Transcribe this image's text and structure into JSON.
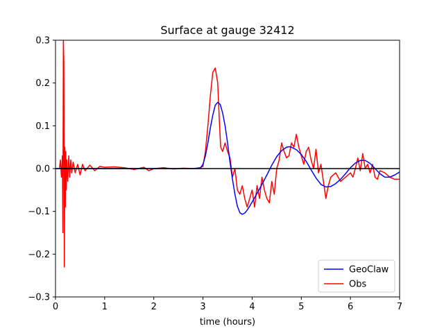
{
  "chart_data": {
    "type": "line",
    "title": "Surface at gauge 32412",
    "xlabel": "time (hours)",
    "ylabel": "",
    "xlim": [
      0,
      7
    ],
    "ylim": [
      -0.3,
      0.3
    ],
    "xticks": [
      "0",
      "1",
      "2",
      "3",
      "4",
      "5",
      "6",
      "7"
    ],
    "yticks": [
      "−0.3",
      "−0.2",
      "−0.1",
      "0.0",
      "0.1",
      "0.2",
      "0.3"
    ],
    "legend_position": "lower-right",
    "zero_line": true,
    "series": [
      {
        "name": "GeoClaw",
        "color": "#0000ff",
        "x": [
          0.0,
          0.5,
          1.0,
          1.5,
          2.0,
          2.5,
          2.8,
          2.95,
          3.0,
          3.05,
          3.1,
          3.15,
          3.2,
          3.25,
          3.3,
          3.35,
          3.4,
          3.45,
          3.5,
          3.55,
          3.6,
          3.65,
          3.7,
          3.75,
          3.8,
          3.85,
          3.9,
          3.95,
          4.0,
          4.1,
          4.2,
          4.3,
          4.4,
          4.5,
          4.6,
          4.7,
          4.75,
          4.8,
          4.9,
          5.0,
          5.1,
          5.2,
          5.3,
          5.4,
          5.5,
          5.6,
          5.7,
          5.8,
          5.9,
          6.0,
          6.1,
          6.2,
          6.3,
          6.4,
          6.5,
          6.6,
          6.7,
          6.8,
          6.9,
          7.0
        ],
        "y": [
          0.0,
          0.0,
          0.0,
          0.0,
          0.0,
          0.0,
          0.0,
          0.002,
          0.01,
          0.03,
          0.06,
          0.095,
          0.125,
          0.148,
          0.155,
          0.15,
          0.13,
          0.1,
          0.06,
          0.015,
          -0.025,
          -0.06,
          -0.088,
          -0.103,
          -0.107,
          -0.104,
          -0.097,
          -0.088,
          -0.078,
          -0.058,
          -0.037,
          -0.015,
          0.008,
          0.028,
          0.042,
          0.05,
          0.051,
          0.05,
          0.044,
          0.033,
          0.017,
          -0.003,
          -0.022,
          -0.037,
          -0.043,
          -0.042,
          -0.035,
          -0.025,
          -0.012,
          0.002,
          0.013,
          0.019,
          0.019,
          0.012,
          0.0,
          -0.012,
          -0.02,
          -0.02,
          -0.015,
          -0.008
        ]
      },
      {
        "name": "Obs",
        "color": "#ff0000",
        "x": [
          0.08,
          0.1,
          0.12,
          0.14,
          0.15,
          0.16,
          0.17,
          0.18,
          0.19,
          0.2,
          0.21,
          0.22,
          0.23,
          0.25,
          0.27,
          0.29,
          0.31,
          0.33,
          0.36,
          0.4,
          0.45,
          0.5,
          0.55,
          0.6,
          0.7,
          0.8,
          0.9,
          1.0,
          1.2,
          1.4,
          1.6,
          1.8,
          1.9,
          2.0,
          2.2,
          2.4,
          2.6,
          2.8,
          2.9,
          3.0,
          3.05,
          3.1,
          3.15,
          3.2,
          3.25,
          3.3,
          3.33,
          3.36,
          3.4,
          3.45,
          3.5,
          3.55,
          3.6,
          3.65,
          3.7,
          3.75,
          3.8,
          3.85,
          3.9,
          3.95,
          4.0,
          4.05,
          4.1,
          4.15,
          4.2,
          4.25,
          4.3,
          4.35,
          4.4,
          4.45,
          4.5,
          4.55,
          4.6,
          4.65,
          4.7,
          4.75,
          4.8,
          4.85,
          4.9,
          4.95,
          5.0,
          5.05,
          5.1,
          5.15,
          5.2,
          5.25,
          5.3,
          5.35,
          5.4,
          5.45,
          5.5,
          5.55,
          5.6,
          5.7,
          5.8,
          5.9,
          6.0,
          6.05,
          6.1,
          6.15,
          6.2,
          6.25,
          6.3,
          6.35,
          6.4,
          6.45,
          6.5,
          6.55,
          6.6,
          6.7,
          6.8,
          6.9,
          7.0
        ],
        "y": [
          0.0,
          0.02,
          -0.02,
          0.03,
          -0.15,
          0.3,
          0.25,
          -0.23,
          0.05,
          -0.09,
          0.04,
          -0.05,
          0.02,
          -0.03,
          0.03,
          -0.02,
          0.02,
          -0.01,
          0.015,
          -0.01,
          0.01,
          -0.015,
          0.01,
          -0.005,
          0.008,
          -0.005,
          0.005,
          0.003,
          0.004,
          0.002,
          -0.002,
          0.003,
          -0.005,
          0.0,
          0.002,
          -0.001,
          0.001,
          0.0,
          0.0,
          0.005,
          0.04,
          0.1,
          0.17,
          0.225,
          0.235,
          0.2,
          0.12,
          0.05,
          0.04,
          0.06,
          0.04,
          0.025,
          -0.02,
          0.0,
          -0.05,
          -0.06,
          -0.04,
          -0.07,
          -0.09,
          -0.07,
          -0.05,
          -0.09,
          -0.04,
          -0.07,
          -0.02,
          -0.05,
          -0.07,
          -0.08,
          -0.03,
          -0.06,
          0.0,
          0.02,
          0.06,
          0.04,
          0.025,
          0.03,
          0.06,
          0.05,
          0.08,
          0.05,
          0.03,
          0.01,
          0.04,
          0.05,
          0.02,
          0.0,
          0.045,
          -0.01,
          0.01,
          -0.03,
          -0.07,
          -0.04,
          -0.02,
          -0.01,
          -0.03,
          -0.02,
          -0.01,
          -0.02,
          0.0,
          0.025,
          -0.005,
          0.035,
          0.0,
          0.01,
          -0.01,
          0.01,
          -0.02,
          -0.025,
          -0.005,
          -0.01,
          -0.02,
          -0.025,
          -0.025
        ]
      }
    ]
  }
}
